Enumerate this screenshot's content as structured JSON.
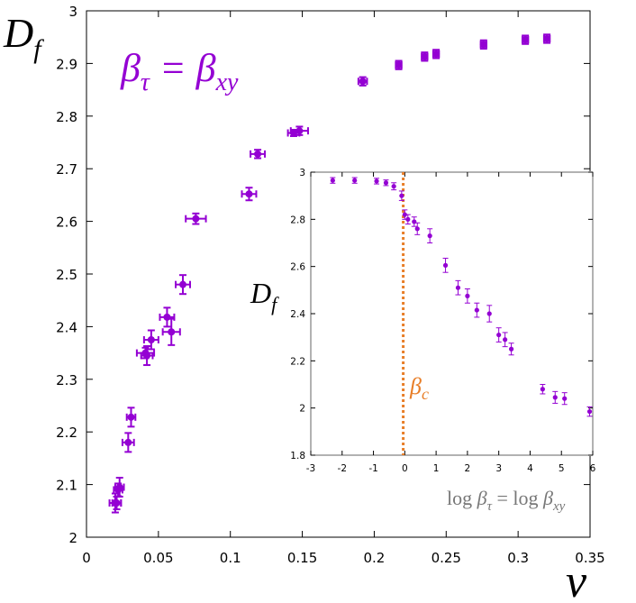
{
  "chart_data": [
    {
      "type": "scatter",
      "title": "",
      "xlabel": "ν",
      "ylabel_main": "D",
      "ylabel_sub": "f",
      "annotation": {
        "lhs_main": "β",
        "lhs_sub": "τ",
        "equals": " = ",
        "rhs_main": "β",
        "rhs_sub": "xy"
      },
      "xlim": [
        0,
        0.35
      ],
      "ylim": [
        2,
        3
      ],
      "xticks": [
        0,
        0.05,
        0.1,
        0.15,
        0.2,
        0.25,
        0.3,
        0.35
      ],
      "xtick_labels": [
        "0",
        "0.05",
        "0.1",
        "0.15",
        "0.2",
        "0.25",
        "0.3",
        "0.35"
      ],
      "yticks": [
        2,
        2.1,
        2.2,
        2.3,
        2.4,
        2.5,
        2.6,
        2.7,
        2.8,
        2.9,
        3
      ],
      "ytick_labels": [
        "2",
        "2.1",
        "2.2",
        "2.3",
        "2.4",
        "2.5",
        "2.6",
        "2.7",
        "2.8",
        "2.9",
        "3"
      ],
      "color": "#9400d3",
      "points": [
        {
          "x": 0.02,
          "y": 2.065,
          "xerr": 0.004,
          "yerr": 0.018
        },
        {
          "x": 0.021,
          "y": 2.065,
          "xerr": 0.003,
          "yerr": 0.012
        },
        {
          "x": 0.022,
          "y": 2.09,
          "xerr": 0.003,
          "yerr": 0.012
        },
        {
          "x": 0.023,
          "y": 2.095,
          "xerr": 0.003,
          "yerr": 0.018
        },
        {
          "x": 0.029,
          "y": 2.18,
          "xerr": 0.004,
          "yerr": 0.018
        },
        {
          "x": 0.031,
          "y": 2.228,
          "xerr": 0.003,
          "yerr": 0.018
        },
        {
          "x": 0.041,
          "y": 2.35,
          "xerr": 0.006,
          "yerr": 0.01
        },
        {
          "x": 0.042,
          "y": 2.345,
          "xerr": 0.004,
          "yerr": 0.018
        },
        {
          "x": 0.045,
          "y": 2.375,
          "xerr": 0.005,
          "yerr": 0.018
        },
        {
          "x": 0.056,
          "y": 2.418,
          "xerr": 0.005,
          "yerr": 0.018
        },
        {
          "x": 0.059,
          "y": 2.39,
          "xerr": 0.006,
          "yerr": 0.025
        },
        {
          "x": 0.067,
          "y": 2.48,
          "xerr": 0.005,
          "yerr": 0.018
        },
        {
          "x": 0.076,
          "y": 2.605,
          "xerr": 0.007,
          "yerr": 0.01
        },
        {
          "x": 0.113,
          "y": 2.652,
          "xerr": 0.005,
          "yerr": 0.012
        },
        {
          "x": 0.119,
          "y": 2.728,
          "xerr": 0.005,
          "yerr": 0.008
        },
        {
          "x": 0.144,
          "y": 2.768,
          "xerr": 0.004,
          "yerr": 0.006
        },
        {
          "x": 0.148,
          "y": 2.772,
          "xerr": 0.006,
          "yerr": 0.008
        },
        {
          "x": 0.192,
          "y": 2.866,
          "xerr": 0.003,
          "yerr": 0.008
        },
        {
          "x": 0.217,
          "y": 2.897,
          "xerr": 0.002,
          "yerr": 0.008
        },
        {
          "x": 0.235,
          "y": 2.913,
          "xerr": 0.002,
          "yerr": 0.008
        },
        {
          "x": 0.243,
          "y": 2.918,
          "xerr": 0.002,
          "yerr": 0.008
        },
        {
          "x": 0.276,
          "y": 2.936,
          "xerr": 0.002,
          "yerr": 0.008
        },
        {
          "x": 0.305,
          "y": 2.945,
          "xerr": 0.002,
          "yerr": 0.008
        },
        {
          "x": 0.32,
          "y": 2.947,
          "xerr": 0.002,
          "yerr": 0.008
        }
      ]
    },
    {
      "type": "scatter",
      "title": "",
      "xlabel": "log βτ = log βxy",
      "xlabel_parts": {
        "log1": "log ",
        "b1": "β",
        "s1": "τ",
        "eq": " = log ",
        "b2": "β",
        "s2": "xy"
      },
      "ylabel_main": "D",
      "ylabel_sub": "f",
      "xlim": [
        -3,
        6
      ],
      "ylim": [
        1.8,
        3
      ],
      "xticks": [
        -3,
        -2,
        -1,
        0,
        1,
        2,
        3,
        4,
        5,
        6
      ],
      "xtick_labels": [
        "-3",
        "-2",
        "-1",
        "0",
        "1",
        "2",
        "3",
        "4",
        "5",
        "6"
      ],
      "yticks": [
        1.8,
        2,
        2.2,
        2.4,
        2.6,
        2.8,
        3
      ],
      "ytick_labels": [
        "1.8",
        "2",
        "2.2",
        "2.4",
        "2.6",
        "2.8",
        "3"
      ],
      "critical_line": {
        "x": -0.05,
        "label_main": "β",
        "label_sub": "c",
        "color": "#e87e28"
      },
      "color": "#9400d3",
      "points": [
        {
          "x": -2.3,
          "y": 2.965,
          "yerr": 0.012
        },
        {
          "x": -1.6,
          "y": 2.965,
          "yerr": 0.012
        },
        {
          "x": -0.9,
          "y": 2.962,
          "yerr": 0.012
        },
        {
          "x": -0.6,
          "y": 2.955,
          "yerr": 0.012
        },
        {
          "x": -0.35,
          "y": 2.94,
          "yerr": 0.015
        },
        {
          "x": -0.1,
          "y": 2.9,
          "yerr": 0.02
        },
        {
          "x": 0.0,
          "y": 2.82,
          "yerr": 0.02
        },
        {
          "x": 0.1,
          "y": 2.8,
          "yerr": 0.02
        },
        {
          "x": 0.3,
          "y": 2.79,
          "yerr": 0.02
        },
        {
          "x": 0.4,
          "y": 2.76,
          "yerr": 0.025
        },
        {
          "x": 0.8,
          "y": 2.73,
          "yerr": 0.03
        },
        {
          "x": 1.3,
          "y": 2.605,
          "yerr": 0.03
        },
        {
          "x": 1.7,
          "y": 2.51,
          "yerr": 0.03
        },
        {
          "x": 2.0,
          "y": 2.475,
          "yerr": 0.03
        },
        {
          "x": 2.3,
          "y": 2.415,
          "yerr": 0.03
        },
        {
          "x": 2.7,
          "y": 2.4,
          "yerr": 0.035
        },
        {
          "x": 3.0,
          "y": 2.31,
          "yerr": 0.03
        },
        {
          "x": 3.2,
          "y": 2.29,
          "yerr": 0.03
        },
        {
          "x": 3.4,
          "y": 2.25,
          "yerr": 0.025
        },
        {
          "x": 4.4,
          "y": 2.08,
          "yerr": 0.02
        },
        {
          "x": 4.8,
          "y": 2.045,
          "yerr": 0.025
        },
        {
          "x": 5.1,
          "y": 2.04,
          "yerr": 0.025
        },
        {
          "x": 5.9,
          "y": 1.985,
          "yerr": 0.02
        }
      ]
    }
  ]
}
